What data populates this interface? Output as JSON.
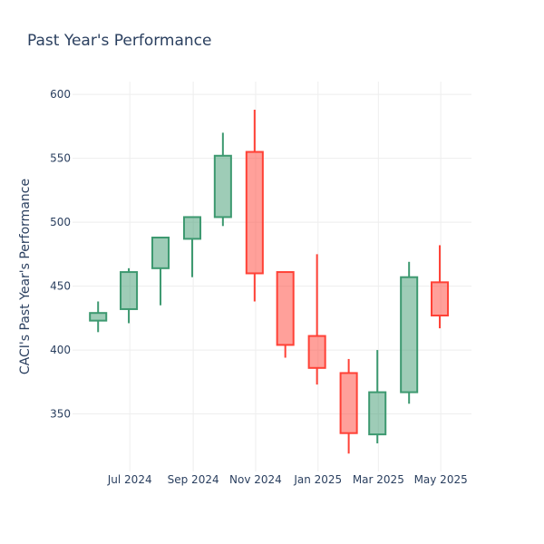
{
  "chart_data": {
    "type": "candlestick",
    "title": "Past Year's Performance",
    "xlabel": "",
    "ylabel": "CACI's Past Year's Performance",
    "ylim": [
      305,
      610
    ],
    "y_ticks": [
      350,
      400,
      450,
      500,
      550,
      600
    ],
    "x_ticks": [
      {
        "date": "2024-07-01",
        "label": "Jul 2024"
      },
      {
        "date": "2024-09-01",
        "label": "Sep 2024"
      },
      {
        "date": "2024-11-01",
        "label": "Nov 2024"
      },
      {
        "date": "2025-01-01",
        "label": "Jan 2025"
      },
      {
        "date": "2025-03-01",
        "label": "Mar 2025"
      },
      {
        "date": "2025-05-01",
        "label": "May 2025"
      }
    ],
    "x_range": [
      "2024-05-06",
      "2025-05-31"
    ],
    "grid": true,
    "increasing_color": "#3d9970",
    "decreasing_color": "#ff4136",
    "candles": [
      {
        "date": "2024-05-31",
        "open": 423,
        "high": 438,
        "low": 414,
        "close": 429
      },
      {
        "date": "2024-06-30",
        "open": 432,
        "high": 464,
        "low": 421,
        "close": 461
      },
      {
        "date": "2024-07-31",
        "open": 464,
        "high": 488,
        "low": 435,
        "close": 488
      },
      {
        "date": "2024-08-31",
        "open": 487,
        "high": 504,
        "low": 457,
        "close": 504
      },
      {
        "date": "2024-09-30",
        "open": 504,
        "high": 570,
        "low": 497,
        "close": 552
      },
      {
        "date": "2024-10-31",
        "open": 555,
        "high": 588,
        "low": 438,
        "close": 460
      },
      {
        "date": "2024-11-30",
        "open": 461,
        "high": 461,
        "low": 394,
        "close": 404
      },
      {
        "date": "2024-12-31",
        "open": 411,
        "high": 475,
        "low": 373,
        "close": 386
      },
      {
        "date": "2025-01-31",
        "open": 382,
        "high": 393,
        "low": 319,
        "close": 335
      },
      {
        "date": "2025-02-28",
        "open": 334,
        "high": 400,
        "low": 327,
        "close": 367
      },
      {
        "date": "2025-03-31",
        "open": 367,
        "high": 469,
        "low": 358,
        "close": 457
      },
      {
        "date": "2025-04-30",
        "open": 453,
        "high": 482,
        "low": 417,
        "close": 427
      }
    ]
  }
}
